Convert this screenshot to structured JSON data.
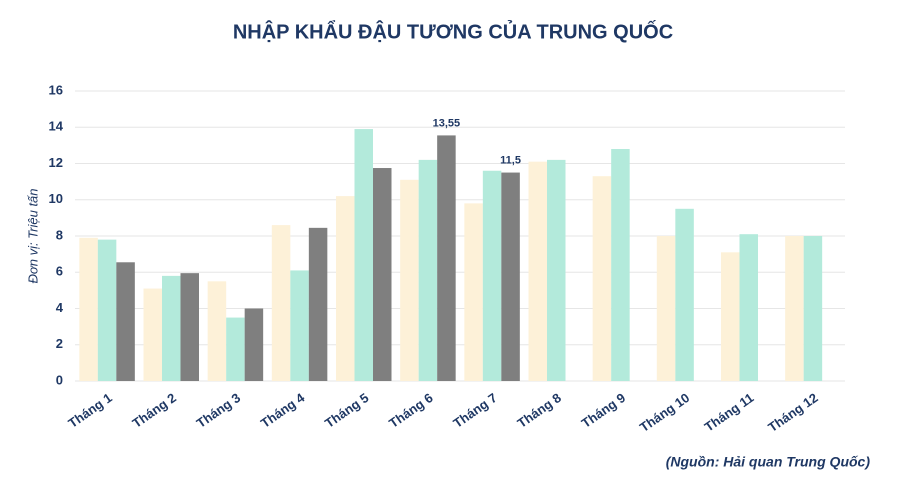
{
  "chart_data": {
    "type": "bar",
    "title": "NHẬP KHẨU ĐẬU TƯƠNG CỦA TRUNG QUỐC",
    "y_label": "Đơn vị: Triệu tấn",
    "source": "(Nguồn: Hải quan Trung Quốc)",
    "categories": [
      "Tháng 1",
      "Tháng 2",
      "Tháng 3",
      "Tháng 4",
      "Tháng 5",
      "Tháng 6",
      "Tháng 7",
      "Tháng 8",
      "Tháng 9",
      "Tháng 10",
      "Tháng 11",
      "Tháng 12"
    ],
    "series": [
      {
        "color": "#fdf1d8",
        "values": [
          7.9,
          5.1,
          5.5,
          8.6,
          10.2,
          11.1,
          9.8,
          12.1,
          11.3,
          8.0,
          7.1,
          8.0
        ]
      },
      {
        "color": "#b3eadb",
        "values": [
          7.8,
          5.8,
          3.5,
          6.1,
          13.9,
          12.2,
          11.6,
          12.2,
          12.8,
          9.5,
          8.1,
          8.0
        ]
      },
      {
        "color": "#7f7f7f",
        "values": [
          6.55,
          5.95,
          4.0,
          8.45,
          11.75,
          13.55,
          11.5,
          null,
          null,
          null,
          null,
          null
        ],
        "value_labels": [
          null,
          null,
          null,
          null,
          null,
          "13,55",
          "11,5",
          null,
          null,
          null,
          null,
          null
        ]
      }
    ],
    "ylim": [
      0,
      16
    ],
    "yticks": [
      0,
      2,
      4,
      6,
      8,
      10,
      12,
      14,
      16
    ],
    "grid": true
  }
}
